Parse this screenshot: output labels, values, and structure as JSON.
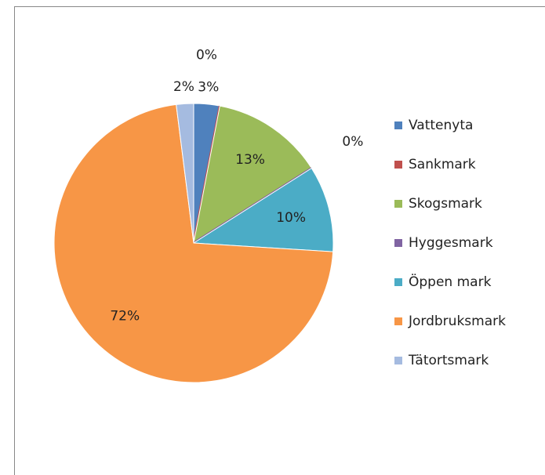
{
  "chart_data": {
    "type": "pie",
    "categories": [
      "Vattenyta",
      "Sankmark",
      "Skogsmark",
      "Hyggesmark",
      "Öppen mark",
      "Jordbruksmark",
      "Tätortsmark"
    ],
    "values": [
      3,
      0,
      13,
      0,
      10,
      72,
      2
    ],
    "value_labels": [
      "3%",
      "0%",
      "13%",
      "0%",
      "10%",
      "72%",
      "2%"
    ],
    "colors": [
      "#4f81bd",
      "#c0504d",
      "#9bbb59",
      "#8064a2",
      "#4bacc6",
      "#f79646",
      "#a5bbe0"
    ],
    "legend": "right"
  }
}
